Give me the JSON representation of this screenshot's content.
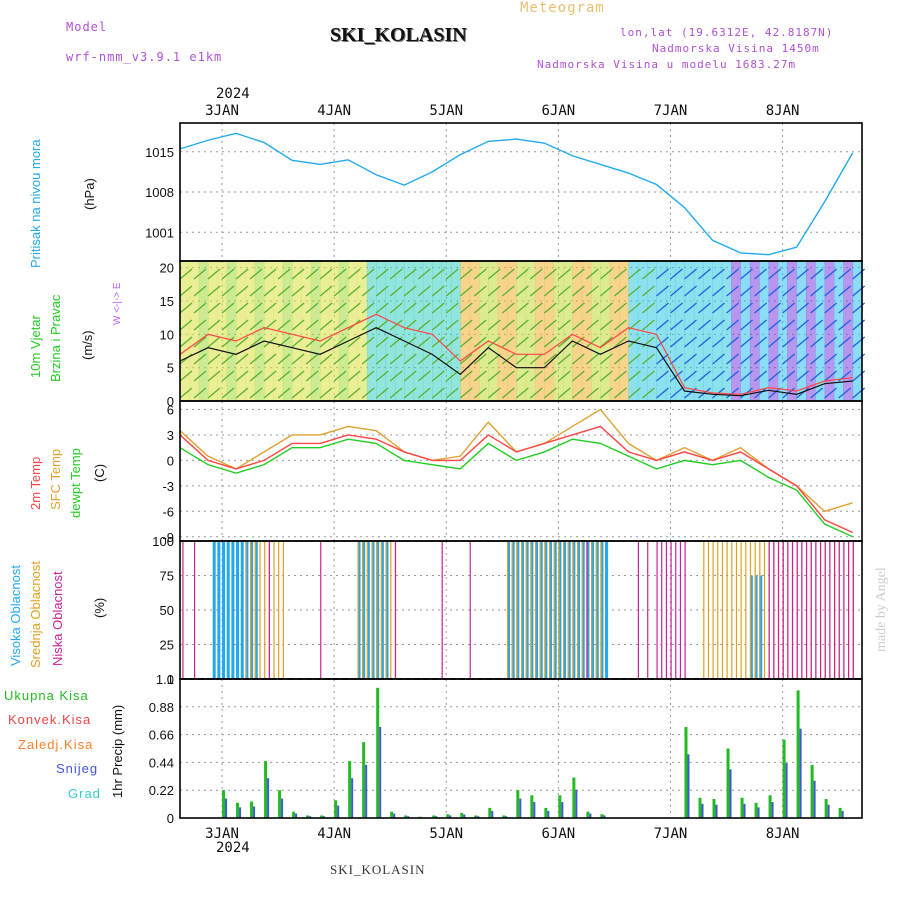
{
  "header": {
    "model_label": "Model",
    "model_name": "wrf-nmm_v3.9.1  e1km",
    "title": "SKI_KOLASIN",
    "meteogram_label": "Meteogram",
    "lonlat": "lon,lat (19.6312E, 42.8187N)",
    "elevation": "Nadmorska Visina 1450m",
    "model_elevation": "Nadmorska Visina u modelu 1683.27m",
    "year": "2024",
    "footer_title": "SKI_KOLASIN",
    "credit": "made by Angel"
  },
  "days": [
    "3JAN",
    "4JAN",
    "5JAN",
    "6JAN",
    "7JAN",
    "8JAN"
  ],
  "panel_labels": {
    "pressure": {
      "name": "Pritisak na nivou mora",
      "unit": "(hPa)"
    },
    "wind": {
      "name1": "10m Vjetar",
      "name2": "Brzina i Pravac",
      "unit": "(m/s)",
      "compass": "W <-|-> E"
    },
    "temp": {
      "t2m": "2m Temp",
      "sfc": "SFC Temp",
      "dew": "dewpt Temp",
      "unit": "(C)"
    },
    "cloud": {
      "high": "Visoka Oblacnost",
      "mid": "Srednja Oblacnost",
      "low": "Niska Oblacnost",
      "unit": "(%)"
    },
    "precip": {
      "total": "Ukupna Kisa",
      "conv": "Konvek.Kisa",
      "frz": "Zaledj.Kisa",
      "snow": "Snijeg",
      "graup": "Grad",
      "axis": "1hr Precip (mm)"
    }
  },
  "colors": {
    "pressure": "#22aaee",
    "t2m": "#ff4444",
    "sfc": "#e0a030",
    "dew": "#22cc22",
    "cloud_high": "#22a8f0",
    "cloud_mid": "#e0a020",
    "cloud_low": "#cc2299",
    "p_total": "#22bb22",
    "p_conv": "#ee4444",
    "p_frz": "#ff7f27",
    "p_snow": "#4455dd",
    "p_graup": "#33cccc",
    "wind_label": "#22cc22",
    "compass": "#c060ff"
  },
  "chart_data": [
    {
      "type": "line",
      "name": "pressure",
      "x_hours": [
        0,
        6,
        12,
        18,
        24,
        30,
        36,
        42,
        48,
        54,
        60,
        66,
        72,
        78,
        84,
        90,
        96,
        102,
        108,
        114,
        120,
        126,
        132,
        138,
        144
      ],
      "series": [
        {
          "values": [
            1015.5,
            1017,
            1018.2,
            1016.6,
            1013.5,
            1012.8,
            1013.6,
            1011,
            1009.2,
            1011.5,
            1014.5,
            1016.8,
            1017.2,
            1016.5,
            1014.3,
            1012.8,
            1011.3,
            1009.3,
            1005.3,
            999.6,
            997.4,
            997.1,
            998.4,
            1006.3,
            1014.8
          ]
        }
      ],
      "ylim": [
        996,
        1020
      ],
      "yticks": [
        1001,
        1008,
        1015
      ]
    },
    {
      "type": "line",
      "name": "wind",
      "x_hours": [
        0,
        6,
        12,
        18,
        24,
        30,
        36,
        42,
        48,
        54,
        60,
        66,
        72,
        78,
        84,
        90,
        96,
        102,
        108,
        114,
        120,
        126,
        132,
        138,
        144
      ],
      "series": [
        {
          "values": [
            7,
            10,
            9,
            11,
            10,
            9,
            11,
            13,
            11,
            10,
            6,
            9,
            7,
            7,
            10,
            8,
            11,
            10,
            2,
            1.2,
            1,
            2,
            1.5,
            3,
            3.5
          ]
        },
        {
          "values": [
            6,
            8,
            7,
            9,
            8,
            7,
            9,
            11,
            9,
            7,
            4,
            8,
            5,
            5,
            9,
            7,
            9,
            8,
            1.5,
            1,
            0.8,
            1.6,
            1,
            2.6,
            3
          ]
        }
      ],
      "ylim": [
        0,
        21
      ],
      "yticks": [
        0,
        5,
        10,
        15,
        20
      ]
    },
    {
      "type": "line",
      "name": "temperature",
      "x_hours": [
        0,
        6,
        12,
        18,
        24,
        30,
        36,
        42,
        48,
        54,
        60,
        66,
        72,
        78,
        84,
        90,
        96,
        102,
        108,
        114,
        120,
        126,
        132,
        138,
        144
      ],
      "series": [
        {
          "name": "2m Temp",
          "values": [
            3,
            0,
            -1,
            0,
            2,
            2,
            3,
            2.5,
            1,
            0,
            0,
            3,
            1,
            2,
            3,
            4,
            1,
            0,
            1,
            0,
            1,
            -1,
            -3,
            -7,
            -8.5
          ]
        },
        {
          "name": "SFC Temp",
          "values": [
            3.5,
            0.5,
            -1,
            1,
            3,
            3,
            4,
            3.5,
            1,
            0,
            0.5,
            4.5,
            1,
            2,
            4,
            6,
            2,
            0,
            1.5,
            0,
            1.5,
            -1,
            -3,
            -6,
            -5
          ]
        },
        {
          "name": "dewpt Temp",
          "values": [
            1.5,
            -0.5,
            -1.5,
            -0.5,
            1.5,
            1.5,
            2.5,
            2,
            0,
            -0.5,
            -1,
            2,
            0,
            1,
            2.5,
            2,
            0.5,
            -1,
            0,
            -0.5,
            0,
            -2,
            -3.5,
            -7.5,
            -9
          ]
        }
      ],
      "ylim": [
        -9.5,
        7
      ],
      "yticks": [
        -9,
        -6,
        -3,
        0,
        3,
        6
      ]
    },
    {
      "type": "bar",
      "name": "cloud",
      "ylim": [
        0,
        100
      ],
      "yticks": [
        0,
        25,
        50,
        75,
        100
      ],
      "series": [
        {
          "name": "Visoka Oblacnost",
          "segments": [
            [
              7,
              16,
              100
            ],
            [
              38,
              44,
              100
            ],
            [
              70,
              91,
              100
            ],
            [
              122,
              124,
              75
            ]
          ]
        },
        {
          "name": "Srednja Oblacnost",
          "segments": [
            [
              14,
              22,
              100
            ],
            [
              38,
              46,
              100
            ],
            [
              70,
              90,
              100
            ],
            [
              112,
              144,
              100
            ]
          ]
        },
        {
          "name": "Niska Oblacnost",
          "segments": [
            [
              0.5,
              0.5,
              100
            ],
            [
              3,
              3,
              100
            ],
            [
              19,
              19,
              100
            ],
            [
              30,
              30,
              100
            ],
            [
              46,
              46,
              100
            ],
            [
              56,
              56,
              100
            ],
            [
              62,
              62,
              100
            ],
            [
              87,
              87,
              100
            ],
            [
              98,
              98,
              100
            ],
            [
              100,
              100,
              100
            ],
            [
              102,
              108,
              100
            ],
            [
              126,
              144,
              100
            ]
          ]
        }
      ]
    },
    {
      "type": "bar",
      "name": "precip",
      "ylim": [
        0,
        1.1
      ],
      "yticks": [
        0,
        0.22,
        0.44,
        0.66,
        0.88,
        1.1
      ],
      "x_hours": [
        9,
        12,
        15,
        18,
        21,
        24,
        27,
        30,
        33,
        36,
        39,
        42,
        45,
        48,
        51,
        54,
        57,
        60,
        63,
        66,
        69,
        72,
        75,
        78,
        81,
        84,
        87,
        90,
        93,
        96,
        99,
        102,
        105,
        108,
        111,
        114,
        117,
        120,
        123,
        126,
        129,
        132,
        135,
        138,
        141
      ],
      "series": [
        {
          "values": [
            0.22,
            0.12,
            0.13,
            0.45,
            0.22,
            0.05,
            0.02,
            0.02,
            0.14,
            0.45,
            0.6,
            1.03,
            0.05,
            0.02,
            0.01,
            0.02,
            0.03,
            0.04,
            0.02,
            0.08,
            0.02,
            0.22,
            0.18,
            0.08,
            0.18,
            0.32,
            0.05,
            0.03,
            0.0,
            0.0,
            0.0,
            0.0,
            0.0,
            0.72,
            0.16,
            0.15,
            0.55,
            0.16,
            0.12,
            0.18,
            0.62,
            1.01,
            0.42,
            0.15,
            0.08
          ]
        }
      ]
    }
  ]
}
